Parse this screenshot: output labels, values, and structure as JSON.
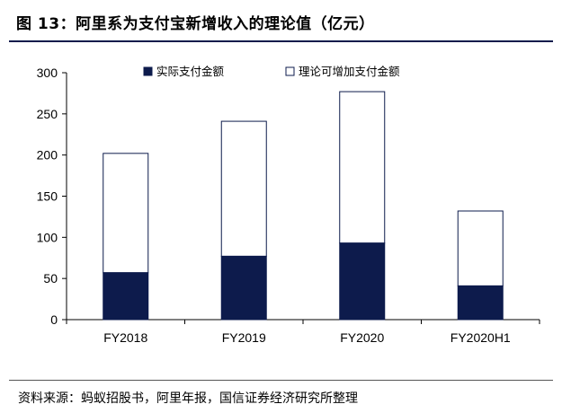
{
  "header": {
    "title": "图 13：阿里系为支付宝新增收入的理论值（亿元）"
  },
  "footer": {
    "source": "资料来源：蚂蚁招股书，阿里年报，国信证券经济研究所整理"
  },
  "colors": {
    "actual": "#0d1b4c",
    "theoretical_fill": "#ffffff",
    "bar_stroke": "#0d1b4c",
    "rule": "#0d1b4c"
  },
  "chart_data": {
    "type": "bar",
    "stacked": true,
    "categories": [
      "FY2018",
      "FY2019",
      "FY2020",
      "FY2020H1"
    ],
    "series": [
      {
        "name": "实际支付金额",
        "values": [
          57,
          77,
          93,
          41
        ]
      },
      {
        "name": "理论可增加支付金额",
        "values": [
          145,
          164,
          184,
          91
        ]
      }
    ],
    "totals": [
      202,
      241,
      277,
      132
    ],
    "ylim": [
      0,
      300
    ],
    "yticks": [
      0,
      50,
      100,
      150,
      200,
      250,
      300
    ],
    "grid": false,
    "legend_position": "top"
  }
}
